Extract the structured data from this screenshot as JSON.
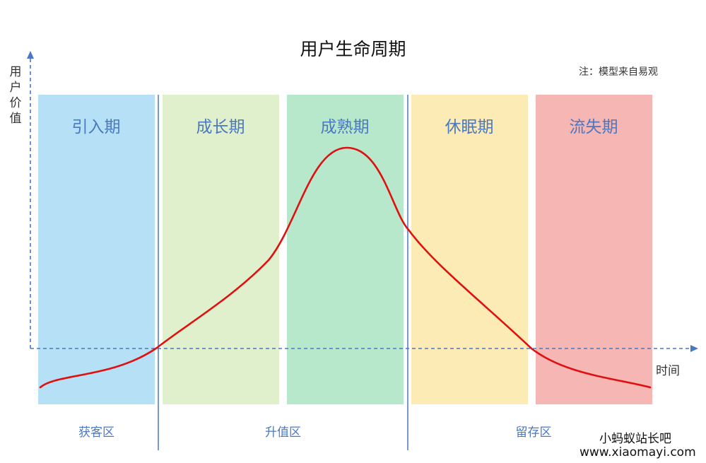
{
  "title": "用户生命周期",
  "note": "注：模型来自易观",
  "axes": {
    "y_label": "用户价值",
    "x_label": "时间"
  },
  "stages": [
    {
      "label": "引入期",
      "color": "#b6e0f5"
    },
    {
      "label": "成长期",
      "color": "#e0f0cc"
    },
    {
      "label": "成熟期",
      "color": "#b8e8cc"
    },
    {
      "label": "休眠期",
      "color": "#fcebb4"
    },
    {
      "label": "流失期",
      "color": "#f5b6b4"
    }
  ],
  "zones": [
    {
      "label": "获客区"
    },
    {
      "label": "升值区"
    },
    {
      "label": "留存区"
    }
  ],
  "colors": {
    "axis": "#4a78c2",
    "curve": "#e01010",
    "divider": "#4a78c2"
  },
  "watermark": {
    "name": "小蚂蚁站长吧",
    "url": "www.xiaomayi.com"
  }
}
